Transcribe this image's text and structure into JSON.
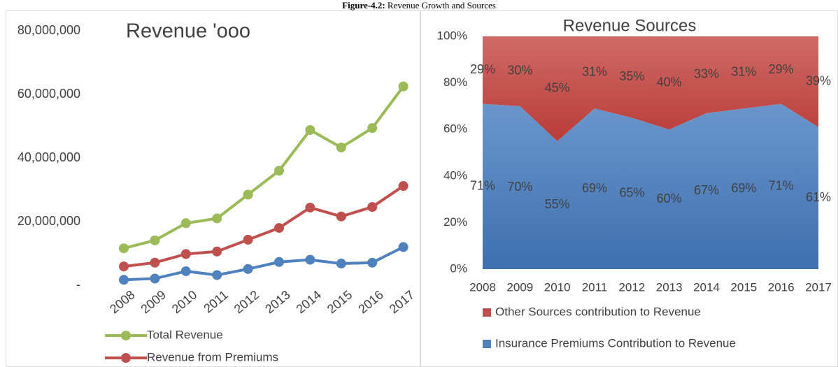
{
  "figure": {
    "label": "Figure-4.2:",
    "text": "Revenue Growth and Sources"
  },
  "chart_data": [
    {
      "type": "line",
      "title": "Revenue 'ooo",
      "categories": [
        "2008",
        "2009",
        "2010",
        "2011",
        "2012",
        "2013",
        "2014",
        "2015",
        "2016",
        "2017"
      ],
      "series": [
        {
          "name": "Total Revenue",
          "color": "#9bbb59",
          "values": [
            11600000,
            14100000,
            19500000,
            21000000,
            28500000,
            36000000,
            48800000,
            43300000,
            49400000,
            62500000
          ]
        },
        {
          "name": "Revenue from Premiums",
          "color": "#c0504d",
          "values": [
            5900000,
            7100000,
            9800000,
            10600000,
            14300000,
            18000000,
            24400000,
            21600000,
            24600000,
            31200000
          ]
        },
        {
          "color": "#4f81bd",
          "values": [
            1700000,
            2100000,
            4400000,
            3200000,
            5100000,
            7300000,
            8000000,
            6800000,
            7100000,
            12000000
          ]
        }
      ],
      "ylim": [
        0,
        80000000
      ],
      "yticks": [
        {
          "value": 0,
          "label": "-"
        },
        {
          "value": 20000000,
          "label": "20,000,000"
        },
        {
          "value": 40000000,
          "label": "40,000,000"
        },
        {
          "value": 60000000,
          "label": "60,000,000"
        },
        {
          "value": 80000000,
          "label": "80,000,000"
        }
      ],
      "grid": false
    },
    {
      "type": "stacked_area",
      "title": "Revenue Sources",
      "categories": [
        "2008",
        "2009",
        "2010",
        "2011",
        "2012",
        "2013",
        "2014",
        "2015",
        "2016",
        "2017"
      ],
      "series": [
        {
          "name": "Insurance Premiums Contribution to Revenue",
          "color": "#4f81bd",
          "values": [
            71,
            70,
            55,
            69,
            65,
            60,
            67,
            69,
            71,
            61
          ],
          "value_labels": [
            "71%",
            "70%",
            "55%",
            "69%",
            "65%",
            "60%",
            "67%",
            "69%",
            "71%",
            "61%"
          ]
        },
        {
          "name": "Other Sources contribution to Revenue",
          "color": "#c0504d",
          "values": [
            29,
            30,
            45,
            31,
            35,
            40,
            33,
            31,
            29,
            39
          ],
          "value_labels": [
            "29%",
            "30%",
            "45%",
            "31%",
            "35%",
            "40%",
            "33%",
            "31%",
            "29%",
            "39%"
          ]
        }
      ],
      "ylim": [
        0,
        100
      ],
      "yticks": [
        {
          "value": 0,
          "label": "0%"
        },
        {
          "value": 20,
          "label": "20%"
        },
        {
          "value": 40,
          "label": "40%"
        },
        {
          "value": 60,
          "label": "60%"
        },
        {
          "value": 80,
          "label": "80%"
        },
        {
          "value": 100,
          "label": "100%"
        }
      ],
      "grid": false
    }
  ]
}
